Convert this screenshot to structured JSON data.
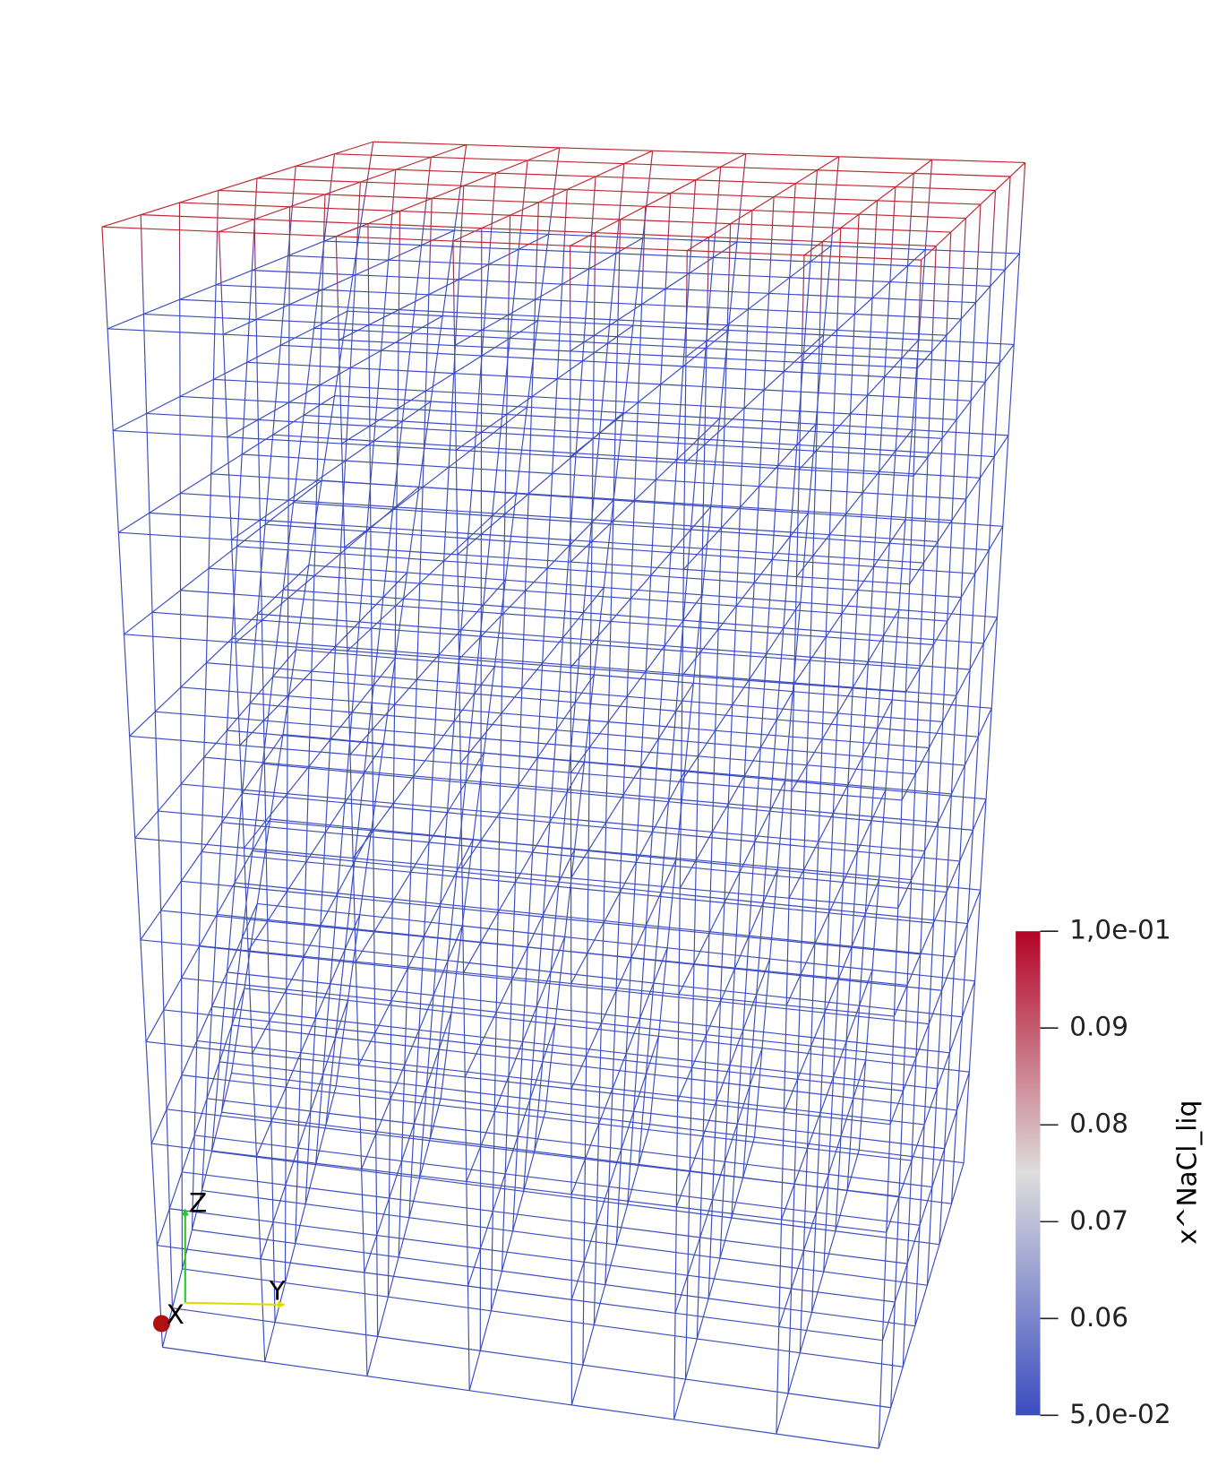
{
  "colorbar": {
    "title": "x^NaCl_liq",
    "range": [
      0.05,
      0.1
    ],
    "ticks": [
      {
        "value": 0.1,
        "label": "1,0e-01"
      },
      0.09,
      0.08,
      0.07,
      0.06,
      {
        "value": 0.05,
        "label": "5,0e-02"
      }
    ],
    "colors": [
      "#3b4cc0",
      "#dddddd",
      "#b40426"
    ]
  },
  "orientation_axes": {
    "x": "X",
    "y": "Y",
    "z": "Z"
  }
}
